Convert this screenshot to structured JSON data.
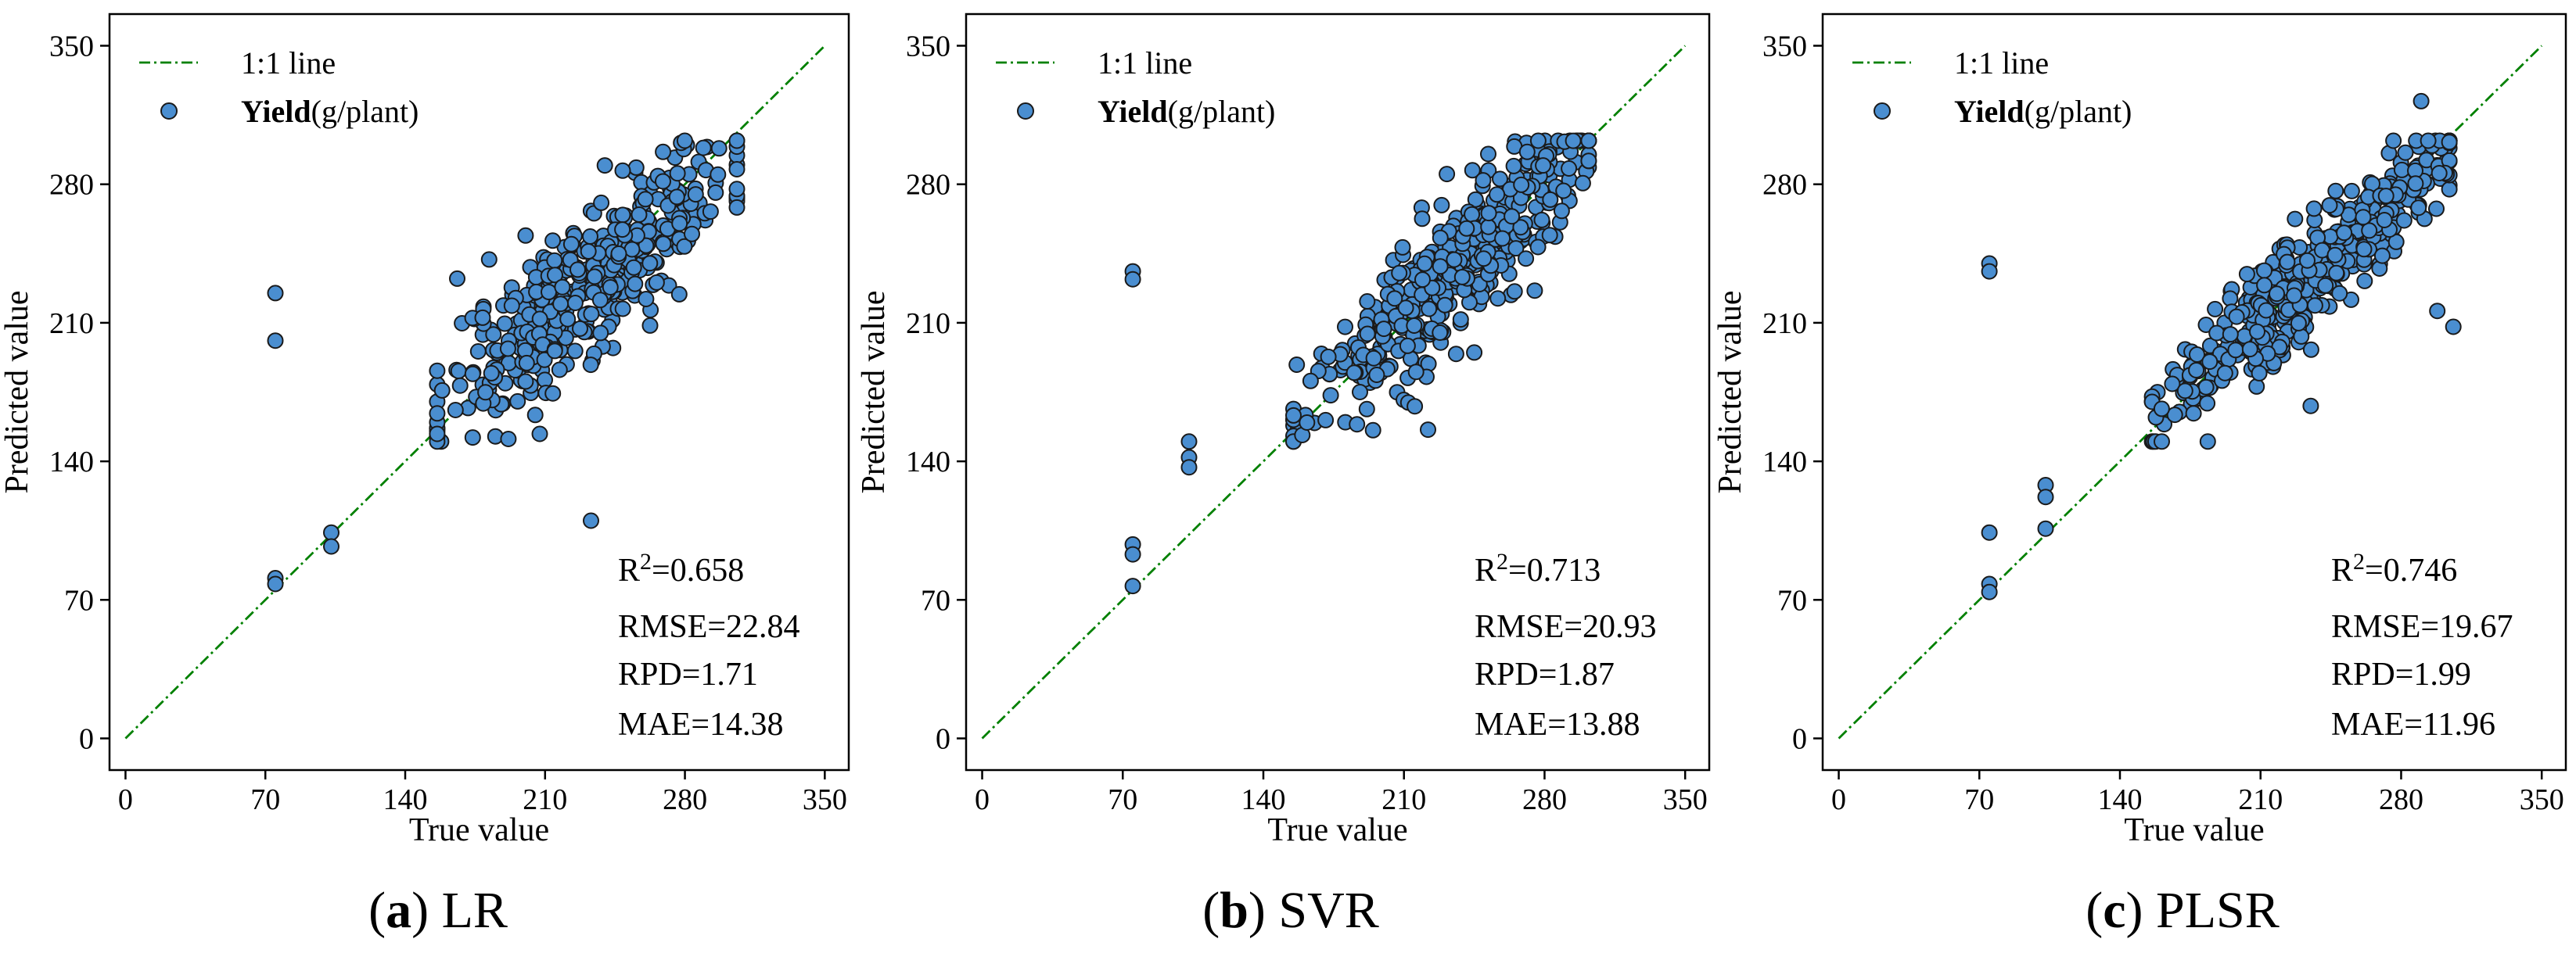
{
  "chart_data": [
    {
      "type": "scatter",
      "panel_id": "a",
      "model": "LR",
      "caption": {
        "prefix": "(",
        "letter": "a",
        "suffix": ") ",
        "model": "LR"
      },
      "xlabel": "True value",
      "ylabel": "Predicted value",
      "xlim": [
        -8,
        362
      ],
      "ylim": [
        -16,
        366
      ],
      "xticks": [
        0,
        70,
        140,
        210,
        280,
        350
      ],
      "yticks": [
        0,
        70,
        140,
        210,
        280,
        350
      ],
      "legend": {
        "position": "top-left",
        "line_label": "1:1 line",
        "marker_label_bold": "Yield",
        "marker_label_unit": "(g/plant)"
      },
      "line_color": "#008000",
      "marker_color": "#4a8ed0",
      "stats": {
        "r2_label": "R",
        "r2_sup": "2",
        "r2_value": "=0.658",
        "rmse": "RMSE=22.84",
        "rpd": "RPD=1.71",
        "mae": "MAE=14.38"
      },
      "outliers": [
        [
          75,
          225
        ],
        [
          75,
          201
        ],
        [
          75,
          81
        ],
        [
          75,
          78
        ],
        [
          103,
          104
        ],
        [
          103,
          97
        ],
        [
          233,
          110
        ],
        [
          182,
          242
        ]
      ],
      "cloud": {
        "seed": 11,
        "count": 430,
        "center": 232,
        "spread": 37,
        "xmin": 156,
        "xmax": 306,
        "noise": 19,
        "slope": 0.82,
        "offset": 41
      }
    },
    {
      "type": "scatter",
      "panel_id": "b",
      "model": "SVR",
      "caption": {
        "prefix": "(",
        "letter": "b",
        "suffix": ") ",
        "model": "SVR"
      },
      "xlabel": "True value",
      "ylabel": "Predicted value",
      "xlim": [
        -8,
        362
      ],
      "ylim": [
        -16,
        366
      ],
      "xticks": [
        0,
        70,
        140,
        210,
        280,
        350
      ],
      "yticks": [
        0,
        70,
        140,
        210,
        280,
        350
      ],
      "legend": {
        "position": "top-left",
        "line_label": "1:1 line",
        "marker_label_bold": "Yield",
        "marker_label_unit": "(g/plant)"
      },
      "line_color": "#008000",
      "marker_color": "#4a8ed0",
      "stats": {
        "r2_label": "R",
        "r2_sup": "2",
        "r2_value": "=0.713",
        "rmse": "RMSE=20.93",
        "rpd": "RPD=1.87",
        "mae": "MAE=13.88"
      },
      "outliers": [
        [
          75,
          236
        ],
        [
          75,
          232
        ],
        [
          75,
          98
        ],
        [
          75,
          93
        ],
        [
          75,
          77
        ],
        [
          103,
          150
        ],
        [
          103,
          142
        ],
        [
          103,
          137
        ],
        [
          222,
          156
        ],
        [
          245,
          195
        ]
      ],
      "cloud": {
        "seed": 23,
        "count": 430,
        "center": 233,
        "spread": 36,
        "xmin": 155,
        "xmax": 302,
        "noise": 17,
        "slope": 0.92,
        "offset": 20
      }
    },
    {
      "type": "scatter",
      "panel_id": "c",
      "model": "PLSR",
      "caption": {
        "prefix": "(",
        "letter": "c",
        "suffix": ") ",
        "model": "PLSR"
      },
      "xlabel": "True value",
      "ylabel": "Predicted value",
      "xlim": [
        -8,
        362
      ],
      "ylim": [
        -16,
        366
      ],
      "xticks": [
        0,
        70,
        140,
        210,
        280,
        350
      ],
      "yticks": [
        0,
        70,
        140,
        210,
        280,
        350
      ],
      "legend": {
        "position": "top-left",
        "line_label": "1:1 line",
        "marker_label_bold": "Yield",
        "marker_label_unit": "(g/plant)"
      },
      "line_color": "#008000",
      "marker_color": "#4a8ed0",
      "stats": {
        "r2_label": "R",
        "r2_sup": "2",
        "r2_value": "=0.746",
        "rmse": "RMSE=19.67",
        "rpd": "RPD=1.99",
        "mae": "MAE=11.96"
      },
      "outliers": [
        [
          75,
          240
        ],
        [
          75,
          236
        ],
        [
          75,
          104
        ],
        [
          75,
          78
        ],
        [
          75,
          74
        ],
        [
          103,
          128
        ],
        [
          103,
          122
        ],
        [
          103,
          106
        ],
        [
          290,
          322
        ],
        [
          298,
          216
        ],
        [
          306,
          208
        ],
        [
          235,
          168
        ]
      ],
      "cloud": {
        "seed": 37,
        "count": 430,
        "center": 235,
        "spread": 36,
        "xmin": 156,
        "xmax": 304,
        "noise": 14,
        "slope": 0.9,
        "offset": 24
      }
    }
  ]
}
